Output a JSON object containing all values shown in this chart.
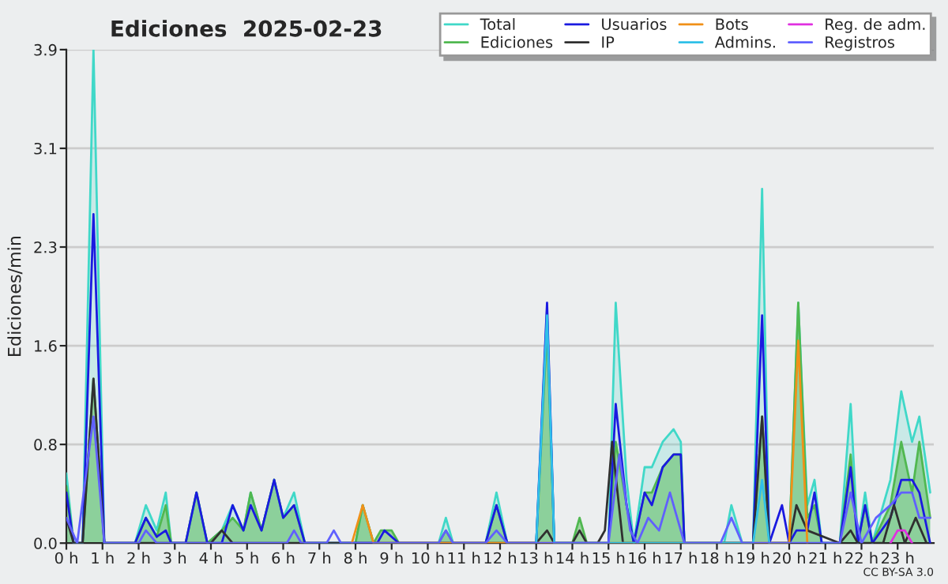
{
  "chart_data": {
    "type": "area",
    "title": "Ediciones  2025-02-23",
    "ylabel": "Ediciones/min",
    "series": [
      {
        "name": "Total",
        "color": "#40d8c8",
        "x": [
          0,
          0.2,
          0.45,
          0.75,
          1.05,
          1.9,
          2.2,
          2.5,
          2.75,
          2.9,
          3.3,
          3.6,
          3.9,
          4.3,
          4.6,
          4.9,
          5.1,
          5.4,
          5.75,
          6.0,
          6.3,
          6.6,
          8.0,
          8.2,
          8.5,
          10.3,
          10.5,
          10.7,
          11.6,
          11.9,
          12.2,
          13.0,
          13.3,
          13.5,
          15.0,
          15.2,
          15.5,
          15.7,
          16.0,
          16.2,
          16.5,
          16.8,
          17.0,
          17.1,
          18.2,
          18.4,
          18.7,
          19.0,
          19.25,
          19.45,
          20.0,
          20.25,
          20.5,
          20.7,
          20.9,
          21.4,
          21.7,
          21.9,
          22.1,
          22.3,
          22.8,
          23.1,
          23.4,
          23.6,
          23.9
        ],
        "values": [
          0.55,
          0,
          0,
          3.9,
          0,
          0,
          0.3,
          0.1,
          0.4,
          0,
          0,
          0.4,
          0,
          0.1,
          0.3,
          0.1,
          0.4,
          0.1,
          0.5,
          0.2,
          0.4,
          0,
          0,
          0.3,
          0,
          0,
          0.2,
          0,
          0,
          0.4,
          0,
          0,
          1.85,
          0,
          0,
          1.9,
          0.5,
          0,
          0.6,
          0.6,
          0.8,
          0.9,
          0.8,
          0,
          0,
          0.3,
          0,
          0,
          2.8,
          0,
          0,
          1.9,
          0.3,
          0.5,
          0,
          0,
          1.1,
          0,
          0.4,
          0,
          0.5,
          1.2,
          0.8,
          1.0,
          0.4
        ]
      },
      {
        "name": "Ediciones",
        "color": "#50b850",
        "x": [
          0,
          0.2,
          0.45,
          0.75,
          1.05,
          1.9,
          2.2,
          2.5,
          2.75,
          2.9,
          3.3,
          3.6,
          3.9,
          4.3,
          4.6,
          4.9,
          5.1,
          5.4,
          5.75,
          6.0,
          6.3,
          6.6,
          8.0,
          8.2,
          8.5,
          8.7,
          9.0,
          9.2,
          10.3,
          10.5,
          10.7,
          11.6,
          11.9,
          12.2,
          13.0,
          13.3,
          13.5,
          14.0,
          14.2,
          14.4,
          15.0,
          15.2,
          15.5,
          15.7,
          16.0,
          16.2,
          16.5,
          16.8,
          17.0,
          17.1,
          19.0,
          19.25,
          19.45,
          20.0,
          20.25,
          20.5,
          20.7,
          20.9,
          21.4,
          21.7,
          21.9,
          22.1,
          22.3,
          22.8,
          23.1,
          23.4,
          23.6,
          23.9
        ],
        "values": [
          0.45,
          0,
          0,
          1.3,
          0,
          0,
          0.2,
          0.05,
          0.3,
          0,
          0,
          0.4,
          0,
          0.1,
          0.2,
          0.1,
          0.4,
          0.1,
          0.5,
          0.2,
          0.3,
          0,
          0,
          0.3,
          0,
          0.1,
          0.1,
          0,
          0,
          0.1,
          0,
          0,
          0.3,
          0,
          0,
          1.7,
          0,
          0,
          0.2,
          0,
          0,
          0.8,
          0.3,
          0,
          0.4,
          0.4,
          0.6,
          0.7,
          0.7,
          0,
          0,
          1.0,
          0,
          0,
          1.9,
          0.2,
          0.3,
          0,
          0,
          0.7,
          0,
          0.3,
          0,
          0.3,
          0.8,
          0.4,
          0.8,
          0.2
        ]
      },
      {
        "name": "Usuarios",
        "type": "line",
        "color": "#1a1ae0",
        "x": [
          0,
          0.2,
          0.45,
          0.75,
          1.05,
          1.9,
          2.2,
          2.5,
          2.75,
          2.9,
          3.3,
          3.6,
          3.9,
          4.3,
          4.6,
          4.9,
          5.1,
          5.4,
          5.75,
          6.0,
          6.3,
          6.6,
          8.6,
          8.8,
          9.2,
          11.6,
          11.9,
          12.2,
          13.0,
          13.3,
          13.5,
          15.0,
          15.2,
          15.5,
          15.7,
          16.0,
          16.2,
          16.5,
          16.8,
          17.0,
          17.1,
          19.0,
          19.25,
          19.45,
          19.8,
          20.0,
          20.2,
          20.5,
          20.7,
          20.9,
          21.4,
          21.7,
          21.9,
          22.1,
          22.3,
          22.8,
          23.1,
          23.4,
          23.6,
          23.9
        ],
        "values": [
          0.4,
          0,
          0,
          2.6,
          0,
          0,
          0.2,
          0.05,
          0.1,
          0,
          0,
          0.4,
          0,
          0,
          0.3,
          0.1,
          0.3,
          0.1,
          0.5,
          0.2,
          0.3,
          0,
          0,
          0.1,
          0,
          0,
          0.3,
          0,
          0,
          1.9,
          0,
          0,
          1.1,
          0.3,
          0,
          0.4,
          0.3,
          0.6,
          0.7,
          0.7,
          0,
          0,
          1.8,
          0,
          0.3,
          0,
          0.1,
          0.1,
          0.4,
          0,
          0,
          0.6,
          0,
          0.3,
          0,
          0.2,
          0.5,
          0.5,
          0.4,
          0
        ]
      },
      {
        "name": "IP",
        "type": "line",
        "color": "#303030",
        "x": [
          0,
          0.2,
          0.45,
          0.75,
          1.05,
          4.0,
          4.3,
          4.6,
          13.0,
          13.3,
          13.5,
          14.0,
          14.2,
          14.4,
          14.7,
          14.9,
          15.1,
          15.4,
          19.0,
          19.25,
          19.45,
          20.0,
          20.2,
          20.5,
          21.4,
          21.7,
          21.9,
          22.6,
          22.9,
          23.2,
          23.5,
          23.8
        ],
        "values": [
          0.2,
          0,
          0,
          1.3,
          0,
          0,
          0.1,
          0,
          0,
          0.1,
          0,
          0,
          0.1,
          0,
          0,
          0.1,
          0.8,
          0,
          0,
          1.0,
          0,
          0,
          0.3,
          0.1,
          0,
          0.1,
          0,
          0,
          0.3,
          0,
          0.2,
          0
        ]
      },
      {
        "name": "Bots",
        "type": "line",
        "color": "#f09018",
        "x": [
          7.9,
          8.2,
          8.5,
          20.0,
          20.25,
          20.5
        ],
        "values": [
          0,
          0.3,
          0,
          0,
          1.6,
          0
        ]
      },
      {
        "name": "Admins.",
        "type": "line",
        "color": "#30c0e8",
        "x": [
          13.0,
          13.3,
          13.5,
          19.0,
          19.25,
          19.45
        ],
        "values": [
          0,
          1.8,
          0,
          0,
          0.5,
          0
        ]
      },
      {
        "name": "Reg. de adm.",
        "type": "line",
        "color": "#e030e0",
        "x": [
          22.8,
          23.0,
          23.2,
          23.4
        ],
        "values": [
          0,
          0.1,
          0.1,
          0
        ]
      },
      {
        "name": "Registros",
        "type": "line",
        "color": "#6060ff",
        "x": [
          0,
          0.3,
          0.75,
          1.05,
          2.0,
          2.2,
          2.5,
          3.0,
          6.1,
          6.3,
          6.5,
          7.2,
          7.4,
          7.6,
          10.3,
          10.5,
          10.7,
          11.6,
          11.9,
          12.2,
          15.0,
          15.3,
          15.6,
          15.8,
          16.1,
          16.4,
          16.7,
          17.1,
          18.1,
          18.4,
          18.7,
          21.4,
          21.7,
          22.0,
          22.4,
          22.8,
          23.1,
          23.4,
          23.6,
          23.9
        ],
        "values": [
          0.2,
          0,
          1.0,
          0,
          0,
          0.1,
          0,
          0,
          0,
          0.1,
          0,
          0,
          0.1,
          0,
          0,
          0.1,
          0,
          0,
          0.1,
          0,
          0,
          0.7,
          0.1,
          0,
          0.2,
          0.1,
          0.4,
          0,
          0,
          0.2,
          0,
          0,
          0.4,
          0,
          0.2,
          0.3,
          0.4,
          0.4,
          0.2,
          0.2
        ]
      }
    ],
    "xlim": [
      0,
      24
    ],
    "xticks": [
      {
        "value": 0,
        "label": "0 h"
      },
      {
        "value": 1,
        "label": "1 h"
      },
      {
        "value": 2,
        "label": "2 h"
      },
      {
        "value": 3,
        "label": "3 h"
      },
      {
        "value": 4,
        "label": "4 h"
      },
      {
        "value": 5,
        "label": "5 h"
      },
      {
        "value": 6,
        "label": "6 h"
      },
      {
        "value": 7,
        "label": "7 h"
      },
      {
        "value": 8,
        "label": "8 h"
      },
      {
        "value": 9,
        "label": "9 h"
      },
      {
        "value": 10,
        "label": "10 h"
      },
      {
        "value": 11,
        "label": "11 h"
      },
      {
        "value": 12,
        "label": "12 h"
      },
      {
        "value": 13,
        "label": "13 h"
      },
      {
        "value": 14,
        "label": "14 h"
      },
      {
        "value": 15,
        "label": "15 h"
      },
      {
        "value": 16,
        "label": "16 h"
      },
      {
        "value": 17,
        "label": "17 h"
      },
      {
        "value": 18,
        "label": "18 h"
      },
      {
        "value": 19,
        "label": "19 h"
      },
      {
        "value": 20,
        "label": "20 h"
      },
      {
        "value": 21,
        "label": "21 h"
      },
      {
        "value": 22,
        "label": "22 h"
      },
      {
        "value": 23,
        "label": "23 h"
      }
    ],
    "ylim": [
      0,
      3.9
    ],
    "yticks": [
      {
        "value": 0,
        "label": "0.0"
      },
      {
        "value": 0.78,
        "label": "0.8"
      },
      {
        "value": 1.56,
        "label": "1.6"
      },
      {
        "value": 2.34,
        "label": "2.3"
      },
      {
        "value": 3.12,
        "label": "3.1"
      },
      {
        "value": 3.9,
        "label": "3.9"
      }
    ],
    "grid": "y",
    "legend": "top right",
    "annotations": [
      "CC BY-SA 3.0"
    ]
  }
}
